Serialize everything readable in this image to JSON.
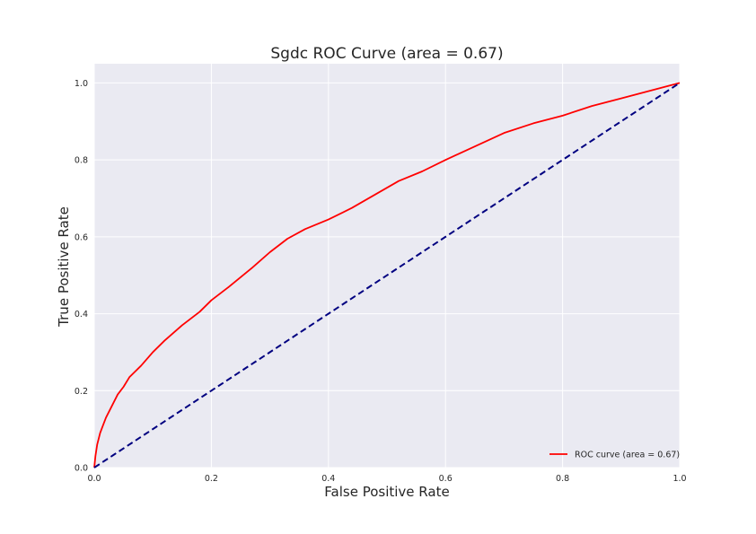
{
  "chart_data": {
    "type": "line",
    "title": "Sgdc ROC Curve (area = 0.67)",
    "xlabel": "False Positive Rate",
    "ylabel": "True Positive Rate",
    "xlim": [
      0.0,
      1.0
    ],
    "ylim": [
      0.0,
      1.05
    ],
    "xticks": [
      0.0,
      0.2,
      0.4,
      0.6,
      0.8,
      1.0
    ],
    "yticks": [
      0.0,
      0.2,
      0.4,
      0.6,
      0.8,
      1.0
    ],
    "xtick_labels": [
      "0.0",
      "0.2",
      "0.4",
      "0.6",
      "0.8",
      "1.0"
    ],
    "ytick_labels": [
      "0.0",
      "0.2",
      "0.4",
      "0.6",
      "0.8",
      "1.0"
    ],
    "grid": true,
    "legend_position": "lower-right",
    "background_color": "#eaeaf2",
    "grid_color": "#ffffff",
    "series": [
      {
        "name": "ROC curve (area = 0.67)",
        "color": "#ff0000",
        "style": "solid",
        "x": [
          0.0,
          0.002,
          0.005,
          0.01,
          0.015,
          0.02,
          0.03,
          0.04,
          0.05,
          0.06,
          0.08,
          0.1,
          0.12,
          0.15,
          0.18,
          0.2,
          0.23,
          0.27,
          0.3,
          0.33,
          0.36,
          0.4,
          0.44,
          0.48,
          0.52,
          0.56,
          0.6,
          0.65,
          0.7,
          0.75,
          0.8,
          0.85,
          0.9,
          0.95,
          1.0
        ],
        "y": [
          0.0,
          0.03,
          0.06,
          0.09,
          0.11,
          0.13,
          0.16,
          0.19,
          0.21,
          0.235,
          0.265,
          0.3,
          0.33,
          0.37,
          0.405,
          0.435,
          0.47,
          0.52,
          0.56,
          0.595,
          0.62,
          0.645,
          0.675,
          0.71,
          0.745,
          0.77,
          0.8,
          0.835,
          0.87,
          0.895,
          0.915,
          0.94,
          0.96,
          0.98,
          1.0
        ]
      },
      {
        "color": "#000080",
        "style": "dashed",
        "x": [
          0.0,
          1.0
        ],
        "y": [
          0.0,
          1.0
        ]
      }
    ]
  }
}
